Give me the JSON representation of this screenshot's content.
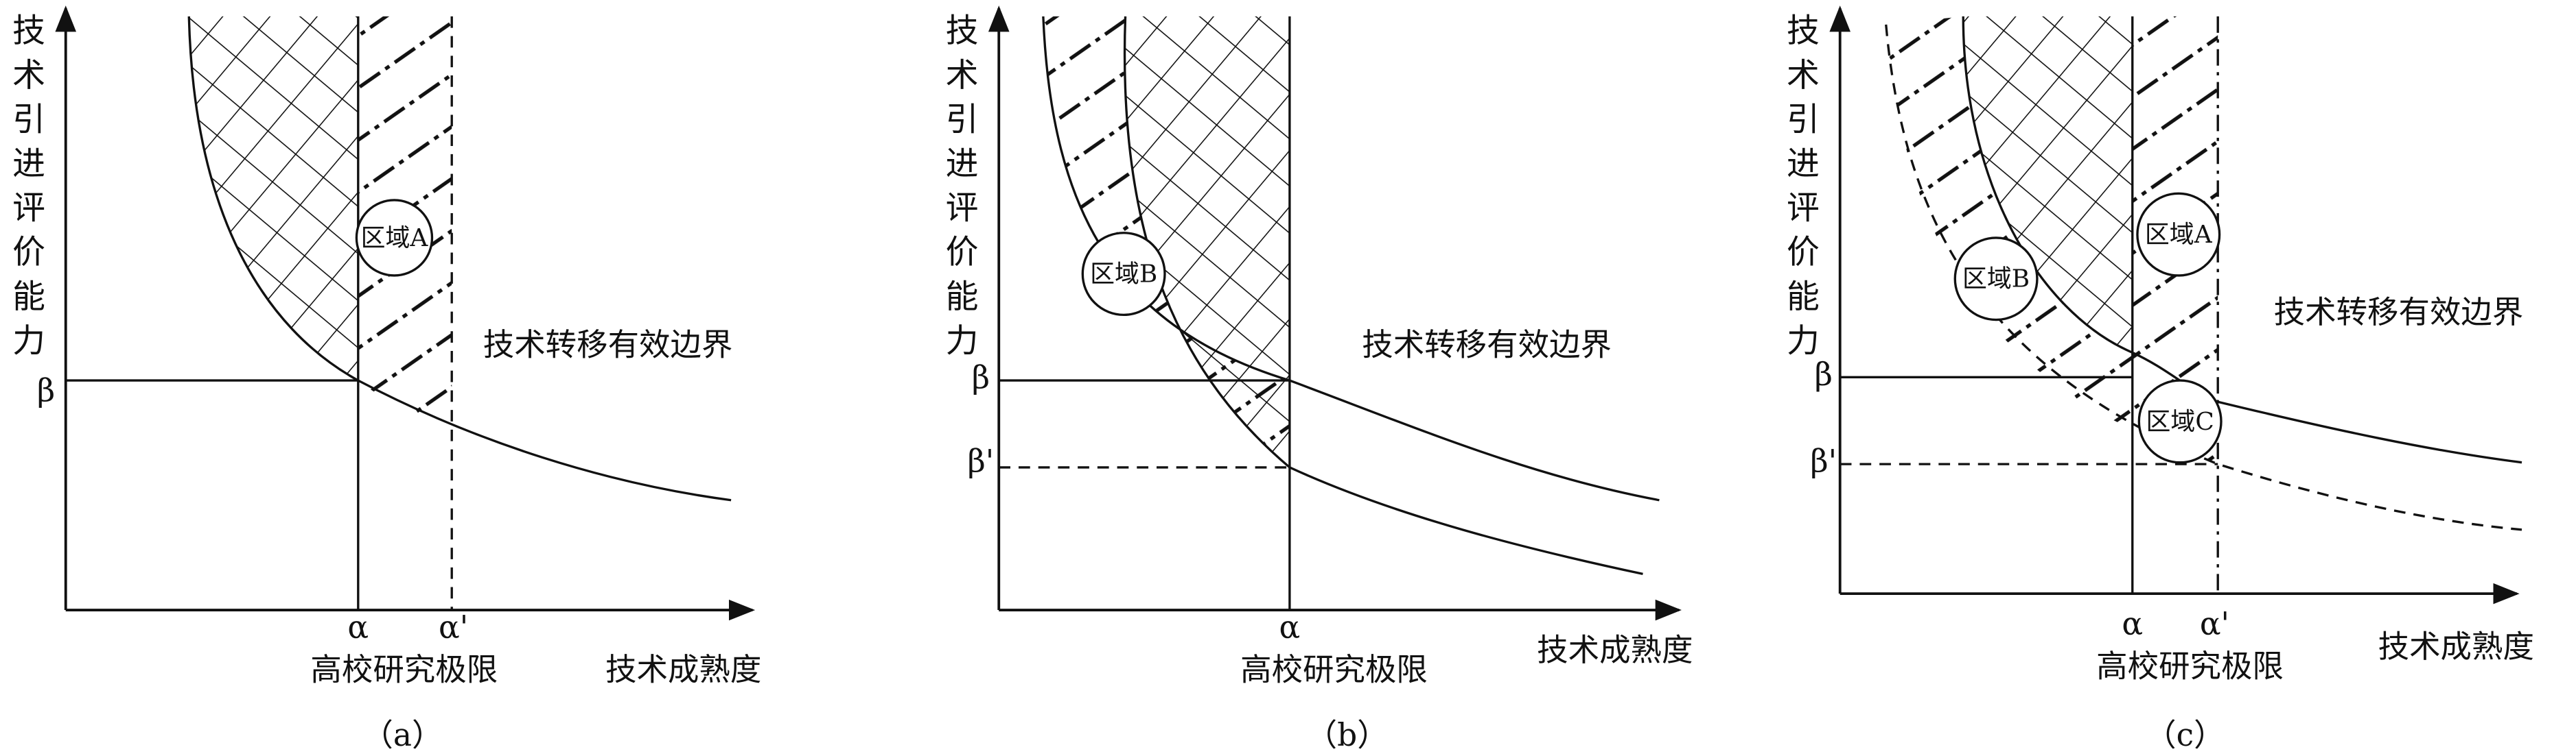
{
  "panels": [
    {
      "caption": "（a）",
      "y_axis_label": "技术引进评价能力",
      "x_axis_label": "技术成熟度",
      "limit_label": "高校研究极限",
      "alpha": "α",
      "alpha_prime": "α'",
      "beta": "β",
      "regions": [
        "区域A"
      ],
      "boundary_label": "技术转移有效边界"
    },
    {
      "caption": "（b）",
      "y_axis_label": "技术引进评价能力",
      "x_axis_label": "技术成熟度",
      "limit_label": "高校研究极限",
      "alpha": "α",
      "beta": "β",
      "beta_prime": "β'",
      "regions": [
        "区域B"
      ],
      "boundary_label": "技术转移有效边界"
    },
    {
      "caption": "（c）",
      "y_axis_label": "技术引进评价能力",
      "x_axis_label": "技术成熟度",
      "limit_label": "高校研究极限",
      "alpha": "α",
      "alpha_prime": "α'",
      "beta": "β",
      "beta_prime": "β'",
      "regions": [
        "区域B",
        "区域A",
        "区域C"
      ],
      "boundary_label": "技术转移有效边界"
    }
  ]
}
